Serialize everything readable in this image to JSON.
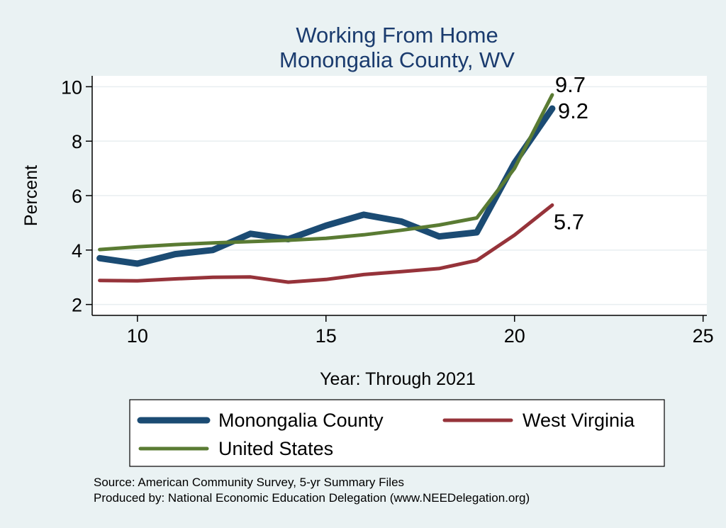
{
  "chart_data": {
    "type": "line",
    "title": [
      "Working From Home",
      "Monongalia County, WV"
    ],
    "xlabel": "Year: Through 2021",
    "ylabel": "Percent",
    "xlim": [
      8.8,
      25.1
    ],
    "ylim": [
      1.6,
      10.4
    ],
    "xticks": [
      10,
      15,
      20,
      25
    ],
    "yticks": [
      2,
      4,
      6,
      8,
      10
    ],
    "grid": "horizontal",
    "legend_position": "bottom",
    "series": [
      {
        "name": "Monongalia County",
        "color": "#1b4b73",
        "width": 9,
        "x": [
          9,
          10,
          11,
          12,
          13,
          14,
          15,
          16,
          17,
          18,
          19,
          20,
          21
        ],
        "values": [
          3.7,
          3.5,
          3.85,
          4.0,
          4.6,
          4.4,
          4.9,
          5.3,
          5.05,
          4.5,
          4.65,
          7.2,
          9.2
        ],
        "end_label": "9.2"
      },
      {
        "name": "West Virginia",
        "color": "#96333a",
        "width": 5,
        "x": [
          9,
          10,
          11,
          12,
          13,
          14,
          15,
          16,
          17,
          18,
          19,
          20,
          21
        ],
        "values": [
          2.88,
          2.87,
          2.94,
          3.0,
          3.01,
          2.82,
          2.92,
          3.1,
          3.21,
          3.32,
          3.62,
          4.55,
          5.65
        ],
        "end_label": "5.7"
      },
      {
        "name": "United States",
        "color": "#5a7b33",
        "width": 5,
        "x": [
          9,
          10,
          11,
          12,
          13,
          14,
          15,
          16,
          17,
          18,
          19,
          20,
          21
        ],
        "values": [
          4.02,
          4.12,
          4.2,
          4.26,
          4.31,
          4.36,
          4.43,
          4.56,
          4.73,
          4.92,
          5.18,
          7.0,
          9.7
        ],
        "end_label": "9.7"
      }
    ]
  },
  "footnotes": [
    "Source: American Community Survey, 5-yr Summary Files",
    "Produced by: National Economic Education Delegation (www.NEEDelegation.org)"
  ]
}
